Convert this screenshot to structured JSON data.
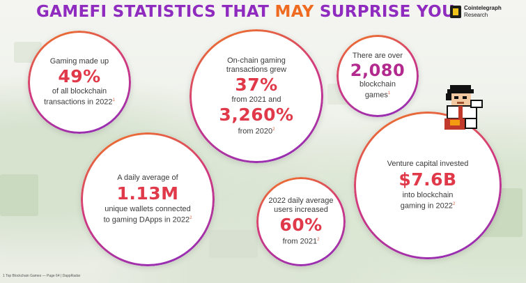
{
  "header": {
    "title_part1": "GAMEFI STATISTICS THAT",
    "title_part2": "MAY",
    "title_part3": "SURPRISE YOU",
    "logo_line1": "Cointelegraph",
    "logo_line2": "Research"
  },
  "stats": [
    {
      "pre": "Gaming made up",
      "value": "49%",
      "post": "of all blockchain transactions in 2022",
      "ref": "1"
    },
    {
      "pre": "On-chain gaming transactions grew",
      "value": "37%",
      "mid": "from 2021 and",
      "value2": "3,260%",
      "post": "from 2020",
      "ref": "2"
    },
    {
      "pre": "There are over",
      "value": "2,080",
      "post": "blockchain games",
      "ref": "1"
    },
    {
      "pre": "A daily average of",
      "value": "1.13M",
      "post": "unique wallets connected to gaming DApps in 2022",
      "ref": "2"
    },
    {
      "pre": "2022 daily average users increased",
      "value": "60%",
      "post": "from 2021",
      "ref": "2"
    },
    {
      "pre": "Venture capital invested",
      "value": "$7.6B",
      "post": "into blockchain gaming in 2022",
      "ref": "2"
    }
  ],
  "footnote": "1 Top Blockchain Games — Page 64 | DappRadar",
  "colors": {
    "purple": "#8f2bbf",
    "orange": "#ef6b22",
    "stat_red": "#e03a4a"
  },
  "icons": [
    "cointelegraph-logo-icon",
    "pixel-mascot-icon"
  ]
}
